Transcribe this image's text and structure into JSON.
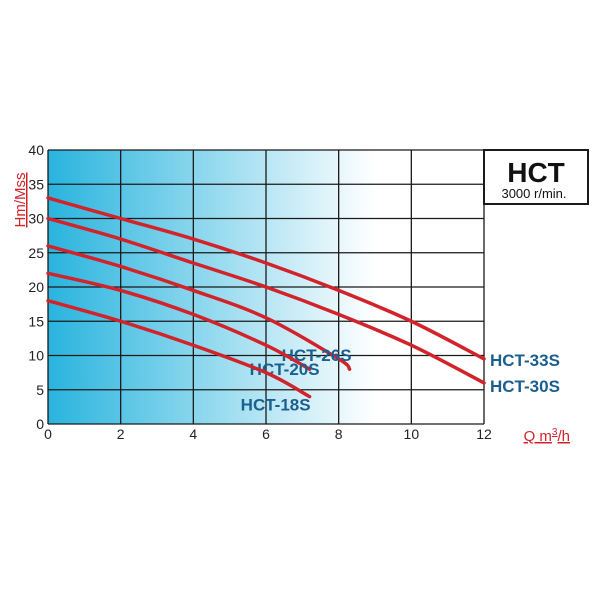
{
  "chart_data": {
    "type": "line",
    "title": "HCT",
    "subtitle": "3000 r/min.",
    "xlabel": "Q m³/h",
    "xlabel_main": "Q m",
    "xlabel_sup": "3",
    "xlabel_tail": "/h",
    "ylabel": "Hm/Mss",
    "xlim": [
      0,
      12
    ],
    "ylim": [
      0,
      40
    ],
    "xticks": [
      0,
      2,
      4,
      6,
      8,
      10,
      12
    ],
    "yticks": [
      0,
      5,
      10,
      15,
      20,
      25,
      30,
      35,
      40
    ],
    "grid": true,
    "series": [
      {
        "name": "HCT-33S",
        "x": [
          0,
          2,
          4,
          6,
          8,
          10,
          12
        ],
        "y": [
          33,
          30,
          27,
          23.5,
          19.5,
          15,
          9.5
        ]
      },
      {
        "name": "HCT-30S",
        "x": [
          0,
          2,
          4,
          6,
          8,
          10,
          12
        ],
        "y": [
          30,
          27,
          23.5,
          20,
          16,
          11.5,
          6
        ]
      },
      {
        "name": "HCT-26S",
        "x": [
          0,
          2,
          4,
          6,
          8,
          8.3
        ],
        "y": [
          26,
          23,
          19.5,
          15.5,
          9.5,
          8
        ]
      },
      {
        "name": "HCT-20S",
        "x": [
          0,
          2,
          4,
          6,
          7.2
        ],
        "y": [
          22,
          19.5,
          16,
          11.5,
          8
        ]
      },
      {
        "name": "HCT-18S",
        "x": [
          0,
          2,
          4,
          6,
          7.2
        ],
        "y": [
          18,
          15,
          11.5,
          7.5,
          4
        ]
      }
    ]
  },
  "colors": {
    "curve": "#d2232a",
    "label": "#1b5f8f",
    "axis_title": "#d2232a",
    "grid": "#1a1a1a",
    "gradient_start": "#29b4de",
    "gradient_end": "#ffffff"
  }
}
